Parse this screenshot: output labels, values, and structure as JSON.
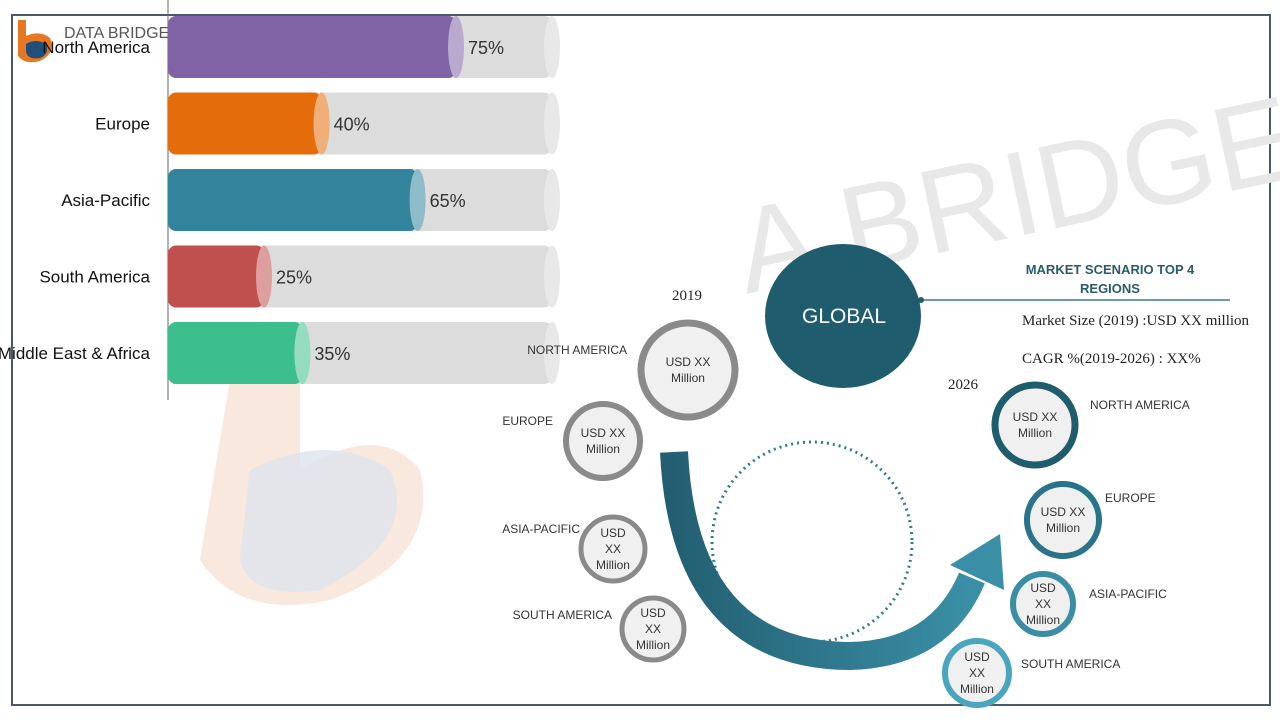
{
  "chart_data": {
    "type": "bar",
    "orientation": "horizontal",
    "categories": [
      "North America",
      "Europe",
      "Asia-Pacific",
      "South America",
      "Middle East & Africa"
    ],
    "values": [
      75,
      40,
      65,
      25,
      35
    ],
    "value_labels": [
      "75%",
      "40%",
      "65%",
      "25%",
      "35%"
    ],
    "colors": [
      "#8063a5",
      "#e46c0a",
      "#31849b",
      "#c0504d",
      "#3cbf8c"
    ],
    "xlim": [
      0,
      100
    ]
  },
  "logo": "DATA BRIDGE",
  "watermark": "A BRIDGE",
  "diagram": {
    "center": "GLOBAL",
    "heading": "MARKET SCENARIO TOP 4 REGIONS",
    "market_size": "Market Size (2019) :USD XX million",
    "cagr": "CAGR %(2019-2026) : XX%",
    "year_start": "2019",
    "year_end": "2026",
    "regions_2019": [
      {
        "label": "NORTH AMERICA",
        "value": "USD XX Million"
      },
      {
        "label": "EUROPE",
        "value": "USD XX Million"
      },
      {
        "label": "ASIA-PACIFIC",
        "value": "USD XX Million"
      },
      {
        "label": "SOUTH AMERICA",
        "value": "USD XX Million"
      }
    ],
    "regions_2026": [
      {
        "label": "NORTH AMERICA",
        "value": "USD XX Million"
      },
      {
        "label": "EUROPE",
        "value": "USD XX Million"
      },
      {
        "label": "ASIA-PACIFIC",
        "value": "USD XX Million"
      },
      {
        "label": "SOUTH AMERICA",
        "value": "USD XX Million"
      }
    ]
  }
}
